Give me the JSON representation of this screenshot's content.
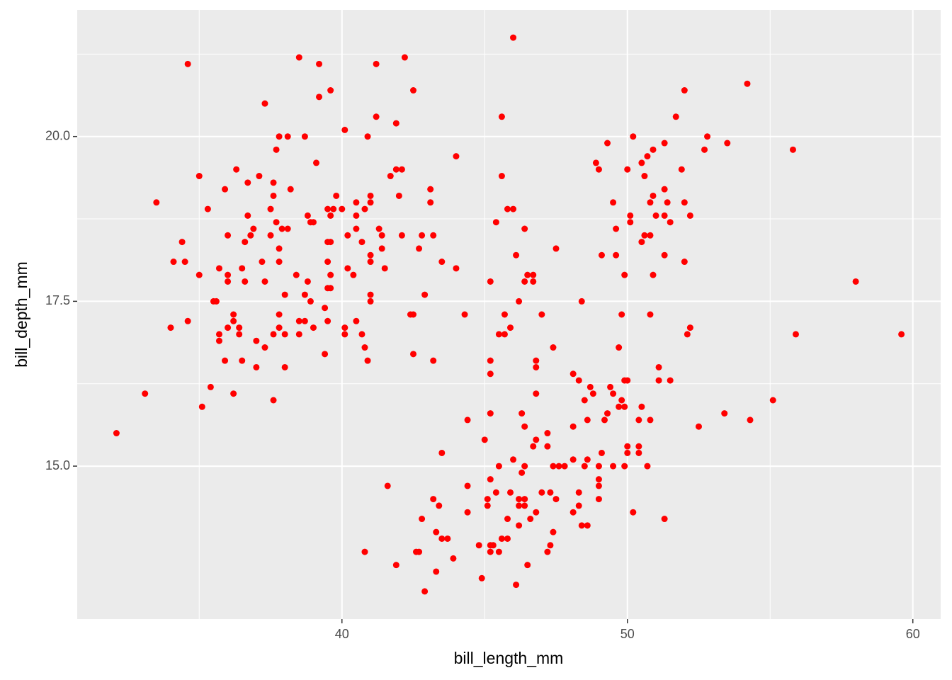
{
  "chart_data": {
    "type": "scatter",
    "x_label": "bill_length_mm",
    "y_label": "bill_depth_mm",
    "color": "#FF0000",
    "xlim": [
      30.725,
      60.975
    ],
    "ylim": [
      12.68,
      21.92
    ],
    "xticks": [
      40,
      50,
      60
    ],
    "yticks": [
      {
        "value": 15,
        "label": "15.0"
      },
      {
        "value": 17.5,
        "label": "17.5"
      },
      {
        "value": 20,
        "label": "20.0"
      }
    ],
    "x_minor_grid": [
      35,
      45,
      55
    ],
    "y_minor_grid": [
      16.25,
      18.75,
      21.25
    ],
    "grid": true,
    "x": [
      32.1,
      33.1,
      33.5,
      34.0,
      34.1,
      34.4,
      34.5,
      34.6,
      34.6,
      35.0,
      35.0,
      35.1,
      35.3,
      35.4,
      35.5,
      35.6,
      35.7,
      35.7,
      35.7,
      35.9,
      35.9,
      36.0,
      36.0,
      36.0,
      36.0,
      36.2,
      36.2,
      36.2,
      36.3,
      36.4,
      36.4,
      36.5,
      36.5,
      36.6,
      36.6,
      36.7,
      36.7,
      36.8,
      36.9,
      37.0,
      37.0,
      37.1,
      37.2,
      37.3,
      37.3,
      37.3,
      37.5,
      37.5,
      37.6,
      37.6,
      37.6,
      37.6,
      37.7,
      37.7,
      37.8,
      37.8,
      37.8,
      37.8,
      37.8,
      37.9,
      38.0,
      38.0,
      38.0,
      38.1,
      38.1,
      38.2,
      38.4,
      38.5,
      38.5,
      38.5,
      38.7,
      38.7,
      38.7,
      38.8,
      38.8,
      38.9,
      38.9,
      39.0,
      39.0,
      39.1,
      39.2,
      39.2,
      39.4,
      39.5,
      39.6,
      39.4,
      39.5,
      39.5,
      39.5,
      39.5,
      39.6,
      39.6,
      39.6,
      39.7,
      39.6,
      39.8,
      40.0,
      40.1,
      40.1,
      40.1,
      40.2,
      40.2,
      40.4,
      40.5,
      40.5,
      40.5,
      40.5,
      40.7,
      40.8,
      40.8,
      40.7,
      40.8,
      40.9,
      40.9,
      41.0,
      41.0,
      41.0,
      41.0,
      41.0,
      41.0,
      41.2,
      41.2,
      41.3,
      41.4,
      41.4,
      41.5,
      41.6,
      41.7,
      41.9,
      41.9,
      41.9,
      42.0,
      42.1,
      42.1,
      42.2,
      42.4,
      42.5,
      42.5,
      42.5,
      42.6,
      42.7,
      42.7,
      42.8,
      42.8,
      42.9,
      42.9,
      43.1,
      43.1,
      43.2,
      43.2,
      43.2,
      43.3,
      43.3,
      43.4,
      43.5,
      43.5,
      43.5,
      43.7,
      43.9,
      44.0,
      44.0,
      44.3,
      44.4,
      44.4,
      44.4,
      44.8,
      44.9,
      45.0,
      45.1,
      45.1,
      45.2,
      45.2,
      45.2,
      45.2,
      45.2,
      45.2,
      45.3,
      45.2,
      45.4,
      45.4,
      45.5,
      45.5,
      45.5,
      45.6,
      45.6,
      45.6,
      45.7,
      45.7,
      45.8,
      45.8,
      45.8,
      45.9,
      45.9,
      46.0,
      46.0,
      46.0,
      46.1,
      46.1,
      46.2,
      46.2,
      46.2,
      46.2,
      46.3,
      46.3,
      46.4,
      46.4,
      46.4,
      46.4,
      46.4,
      46.4,
      46.5,
      46.5,
      46.6,
      46.7,
      46.7,
      46.7,
      46.8,
      46.8,
      46.8,
      46.8,
      46.8,
      47.0,
      47.0,
      47.2,
      47.2,
      47.2,
      47.3,
      47.3,
      47.4,
      47.4,
      47.4,
      47.5,
      47.5,
      47.6,
      47.8,
      48.1,
      48.1,
      48.1,
      48.1,
      48.3,
      48.3,
      48.3,
      48.4,
      48.4,
      48.5,
      48.5,
      48.6,
      48.6,
      48.7,
      48.6,
      48.8,
      48.9,
      49.0,
      49.0,
      49.0,
      49.0,
      49.0,
      49.1,
      49.1,
      49.2,
      49.3,
      49.3,
      49.4,
      49.5,
      49.5,
      49.5,
      49.6,
      49.6,
      49.7,
      49.7,
      49.8,
      49.8,
      49.9,
      49.9,
      49.9,
      50.0,
      49.9,
      50.0,
      50.0,
      50.0,
      50.1,
      50.1,
      50.2,
      50.2,
      50.4,
      50.4,
      50.5,
      50.4,
      50.5,
      50.5,
      50.6,
      50.6,
      50.7,
      50.7,
      50.8,
      50.8,
      50.8,
      50.8,
      50.9,
      50.9,
      50.9,
      51.0,
      51.1,
      51.1,
      51.3,
      51.3,
      51.3,
      51.3,
      51.3,
      51.4,
      51.5,
      51.5,
      51.7,
      51.9,
      52.0,
      52.0,
      52.0,
      52.1,
      52.2,
      52.2,
      52.5,
      52.7,
      52.8,
      53.4,
      53.5,
      54.2,
      54.3,
      55.1,
      55.8,
      55.9,
      58.0,
      59.6
    ],
    "values": [
      15.5,
      16.1,
      19.0,
      17.1,
      18.1,
      18.4,
      18.1,
      21.1,
      17.2,
      17.9,
      19.4,
      15.9,
      18.9,
      16.2,
      17.5,
      17.5,
      18.0,
      17.0,
      16.9,
      19.2,
      16.6,
      18.5,
      17.9,
      17.8,
      17.1,
      16.1,
      17.3,
      17.2,
      19.5,
      17.1,
      17.0,
      18.0,
      16.6,
      18.4,
      17.8,
      19.3,
      18.8,
      18.5,
      18.6,
      16.5,
      16.9,
      19.4,
      18.1,
      20.5,
      16.8,
      17.8,
      18.5,
      18.9,
      17.0,
      19.3,
      19.1,
      16.0,
      19.8,
      18.7,
      20.0,
      18.3,
      17.3,
      18.1,
      17.1,
      18.6,
      16.5,
      17.6,
      17.0,
      20.0,
      18.6,
      19.2,
      17.9,
      17.0,
      17.2,
      21.2,
      20.0,
      17.6,
      17.2,
      17.8,
      18.8,
      17.5,
      18.7,
      18.7,
      17.1,
      19.6,
      21.1,
      20.6,
      17.4,
      18.9,
      18.8,
      16.7,
      18.4,
      17.2,
      17.7,
      18.1,
      20.7,
      17.7,
      17.9,
      18.9,
      18.4,
      19.1,
      18.9,
      20.1,
      17.1,
      17.0,
      18.0,
      18.5,
      17.9,
      18.8,
      19.0,
      18.6,
      17.2,
      17.0,
      16.8,
      18.9,
      18.4,
      13.7,
      16.6,
      20.0,
      19.0,
      18.2,
      17.6,
      17.5,
      19.1,
      18.1,
      20.3,
      21.1,
      18.6,
      18.5,
      18.3,
      18.0,
      14.7,
      19.4,
      20.2,
      19.5,
      13.5,
      19.1,
      19.5,
      18.5,
      21.2,
      17.3,
      17.3,
      20.7,
      16.7,
      13.7,
      13.7,
      18.3,
      18.5,
      14.2,
      17.6,
      13.1,
      19.2,
      19.0,
      16.6,
      18.5,
      14.5,
      14.0,
      13.4,
      14.4,
      18.1,
      15.2,
      13.9,
      13.9,
      13.6,
      19.7,
      18.0,
      17.3,
      15.7,
      14.7,
      14.3,
      13.8,
      13.3,
      15.4,
      14.4,
      14.5,
      16.6,
      16.4,
      17.8,
      15.8,
      14.8,
      13.8,
      13.8,
      13.7,
      18.7,
      14.6,
      15.0,
      17.0,
      13.7,
      20.3,
      19.4,
      13.9,
      17.3,
      17.0,
      18.9,
      14.2,
      13.9,
      17.1,
      14.6,
      21.5,
      18.9,
      15.1,
      18.2,
      13.2,
      17.5,
      14.5,
      14.4,
      14.1,
      14.9,
      15.8,
      18.6,
      15.6,
      15.0,
      14.5,
      14.4,
      17.8,
      17.9,
      13.5,
      14.2,
      17.8,
      17.9,
      15.3,
      15.4,
      16.5,
      16.6,
      16.1,
      14.3,
      14.6,
      17.3,
      15.5,
      13.7,
      15.3,
      13.8,
      14.6,
      16.8,
      15.0,
      14.0,
      18.3,
      14.5,
      15.0,
      15.0,
      16.4,
      15.1,
      15.6,
      14.3,
      16.3,
      14.6,
      14.4,
      17.5,
      14.1,
      15.0,
      16.0,
      14.1,
      15.7,
      16.2,
      15.1,
      16.1,
      19.6,
      19.5,
      14.7,
      14.8,
      14.5,
      15.0,
      15.2,
      18.2,
      15.7,
      19.9,
      15.8,
      16.2,
      19.0,
      15.0,
      16.1,
      18.2,
      18.6,
      15.9,
      16.8,
      17.3,
      16.0,
      15.9,
      17.9,
      16.3,
      16.3,
      15.0,
      19.5,
      15.3,
      15.2,
      18.7,
      18.8,
      20.0,
      14.3,
      15.3,
      15.2,
      19.6,
      15.7,
      18.4,
      15.9,
      19.4,
      18.5,
      19.7,
      15.0,
      19.0,
      15.7,
      17.3,
      18.5,
      17.9,
      19.1,
      19.8,
      18.8,
      16.5,
      16.3,
      18.8,
      19.9,
      19.2,
      18.2,
      14.2,
      19.0,
      16.3,
      18.7,
      20.3,
      19.5,
      20.7,
      19.0,
      18.1,
      17.0,
      18.8,
      17.1,
      15.6,
      19.8,
      20.0,
      15.8,
      19.9,
      20.8,
      15.7,
      16.0,
      19.8,
      17.0,
      17.8,
      17.0
    ]
  }
}
